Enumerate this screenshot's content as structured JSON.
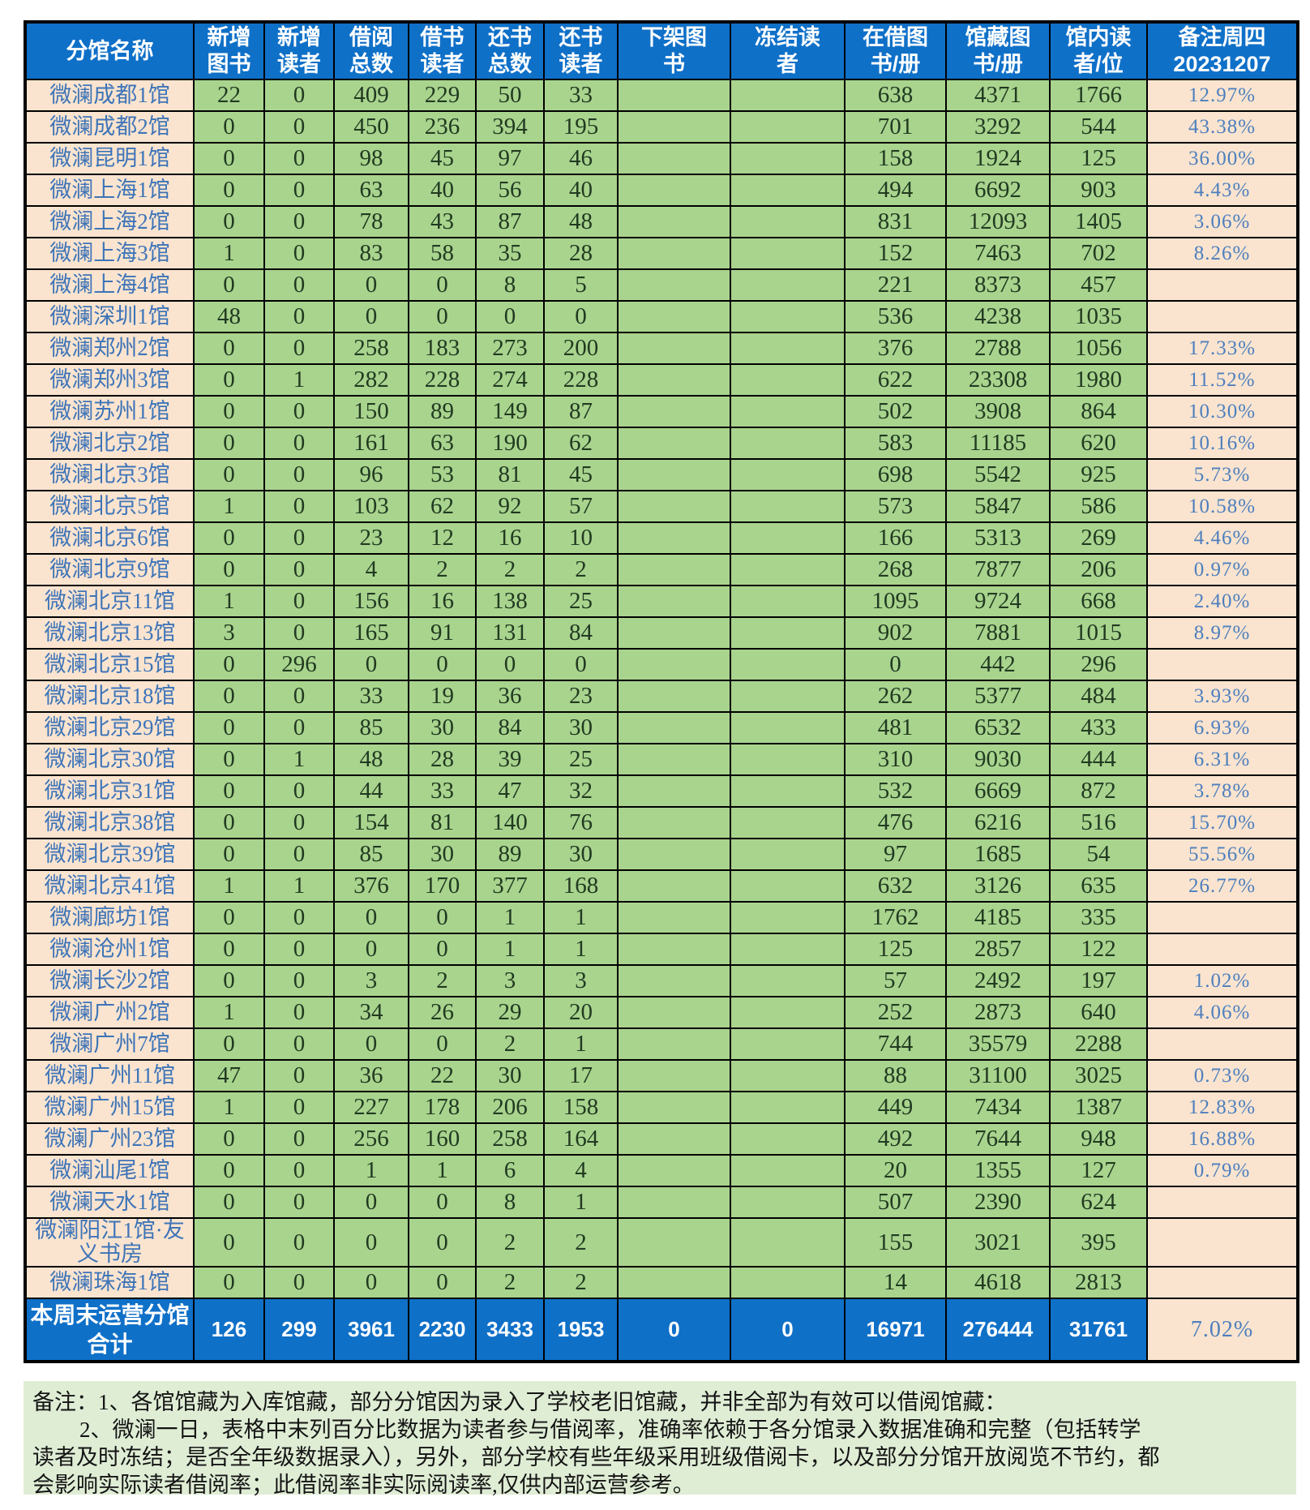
{
  "table": {
    "columns": [
      {
        "id": "branch",
        "lines": [
          "分馆名称"
        ]
      },
      {
        "id": "new-books",
        "lines": [
          "新增",
          "图书"
        ]
      },
      {
        "id": "new-readers",
        "lines": [
          "新增",
          "读者"
        ]
      },
      {
        "id": "borrow-total",
        "lines": [
          "借阅",
          "总数"
        ]
      },
      {
        "id": "borrow-readers",
        "lines": [
          "借书",
          "读者"
        ]
      },
      {
        "id": "return-total",
        "lines": [
          "还书",
          "总数"
        ]
      },
      {
        "id": "return-readers",
        "lines": [
          "还书",
          "读者"
        ]
      },
      {
        "id": "removed-books",
        "lines": [
          "下架图",
          "书"
        ]
      },
      {
        "id": "frozen-readers",
        "lines": [
          "冻结读",
          "者"
        ]
      },
      {
        "id": "on-loan-books",
        "lines": [
          "在借图",
          "书/册"
        ]
      },
      {
        "id": "collection-books",
        "lines": [
          "馆藏图",
          "书/册"
        ]
      },
      {
        "id": "in-library-readers",
        "lines": [
          "馆内读",
          "者/位"
        ]
      },
      {
        "id": "remark-thursday",
        "lines": [
          "备注周四",
          "20231207"
        ]
      }
    ],
    "rows": [
      {
        "name": "微澜成都1馆",
        "values": [
          "22",
          "0",
          "409",
          "229",
          "50",
          "33",
          "",
          "",
          "638",
          "4371",
          "1766"
        ],
        "note": "12.97%"
      },
      {
        "name": "微澜成都2馆",
        "values": [
          "0",
          "0",
          "450",
          "236",
          "394",
          "195",
          "",
          "",
          "701",
          "3292",
          "544"
        ],
        "note": "43.38%"
      },
      {
        "name": "微澜昆明1馆",
        "values": [
          "0",
          "0",
          "98",
          "45",
          "97",
          "46",
          "",
          "",
          "158",
          "1924",
          "125"
        ],
        "note": "36.00%"
      },
      {
        "name": "微澜上海1馆",
        "values": [
          "0",
          "0",
          "63",
          "40",
          "56",
          "40",
          "",
          "",
          "494",
          "6692",
          "903"
        ],
        "note": "4.43%"
      },
      {
        "name": "微澜上海2馆",
        "values": [
          "0",
          "0",
          "78",
          "43",
          "87",
          "48",
          "",
          "",
          "831",
          "12093",
          "1405"
        ],
        "note": "3.06%"
      },
      {
        "name": "微澜上海3馆",
        "values": [
          "1",
          "0",
          "83",
          "58",
          "35",
          "28",
          "",
          "",
          "152",
          "7463",
          "702"
        ],
        "note": "8.26%"
      },
      {
        "name": "微澜上海4馆",
        "values": [
          "0",
          "0",
          "0",
          "0",
          "8",
          "5",
          "",
          "",
          "221",
          "8373",
          "457"
        ],
        "note": ""
      },
      {
        "name": "微澜深圳1馆",
        "values": [
          "48",
          "0",
          "0",
          "0",
          "0",
          "0",
          "",
          "",
          "536",
          "4238",
          "1035"
        ],
        "note": ""
      },
      {
        "name": "微澜郑州2馆",
        "values": [
          "0",
          "0",
          "258",
          "183",
          "273",
          "200",
          "",
          "",
          "376",
          "2788",
          "1056"
        ],
        "note": "17.33%"
      },
      {
        "name": "微澜郑州3馆",
        "values": [
          "0",
          "1",
          "282",
          "228",
          "274",
          "228",
          "",
          "",
          "622",
          "23308",
          "1980"
        ],
        "note": "11.52%"
      },
      {
        "name": "微澜苏州1馆",
        "values": [
          "0",
          "0",
          "150",
          "89",
          "149",
          "87",
          "",
          "",
          "502",
          "3908",
          "864"
        ],
        "note": "10.30%"
      },
      {
        "name": "微澜北京2馆",
        "values": [
          "0",
          "0",
          "161",
          "63",
          "190",
          "62",
          "",
          "",
          "583",
          "11185",
          "620"
        ],
        "note": "10.16%"
      },
      {
        "name": "微澜北京3馆",
        "values": [
          "0",
          "0",
          "96",
          "53",
          "81",
          "45",
          "",
          "",
          "698",
          "5542",
          "925"
        ],
        "note": "5.73%"
      },
      {
        "name": "微澜北京5馆",
        "values": [
          "1",
          "0",
          "103",
          "62",
          "92",
          "57",
          "",
          "",
          "573",
          "5847",
          "586"
        ],
        "note": "10.58%"
      },
      {
        "name": "微澜北京6馆",
        "values": [
          "0",
          "0",
          "23",
          "12",
          "16",
          "10",
          "",
          "",
          "166",
          "5313",
          "269"
        ],
        "note": "4.46%"
      },
      {
        "name": "微澜北京9馆",
        "values": [
          "0",
          "0",
          "4",
          "2",
          "2",
          "2",
          "",
          "",
          "268",
          "7877",
          "206"
        ],
        "note": "0.97%"
      },
      {
        "name": "微澜北京11馆",
        "values": [
          "1",
          "0",
          "156",
          "16",
          "138",
          "25",
          "",
          "",
          "1095",
          "9724",
          "668"
        ],
        "note": "2.40%"
      },
      {
        "name": "微澜北京13馆",
        "values": [
          "3",
          "0",
          "165",
          "91",
          "131",
          "84",
          "",
          "",
          "902",
          "7881",
          "1015"
        ],
        "note": "8.97%"
      },
      {
        "name": "微澜北京15馆",
        "values": [
          "0",
          "296",
          "0",
          "0",
          "0",
          "0",
          "",
          "",
          "0",
          "442",
          "296"
        ],
        "note": ""
      },
      {
        "name": "微澜北京18馆",
        "values": [
          "0",
          "0",
          "33",
          "19",
          "36",
          "23",
          "",
          "",
          "262",
          "5377",
          "484"
        ],
        "note": "3.93%"
      },
      {
        "name": "微澜北京29馆",
        "values": [
          "0",
          "0",
          "85",
          "30",
          "84",
          "30",
          "",
          "",
          "481",
          "6532",
          "433"
        ],
        "note": "6.93%"
      },
      {
        "name": "微澜北京30馆",
        "values": [
          "0",
          "1",
          "48",
          "28",
          "39",
          "25",
          "",
          "",
          "310",
          "9030",
          "444"
        ],
        "note": "6.31%"
      },
      {
        "name": "微澜北京31馆",
        "values": [
          "0",
          "0",
          "44",
          "33",
          "47",
          "32",
          "",
          "",
          "532",
          "6669",
          "872"
        ],
        "note": "3.78%"
      },
      {
        "name": "微澜北京38馆",
        "values": [
          "0",
          "0",
          "154",
          "81",
          "140",
          "76",
          "",
          "",
          "476",
          "6216",
          "516"
        ],
        "note": "15.70%"
      },
      {
        "name": "微澜北京39馆",
        "values": [
          "0",
          "0",
          "85",
          "30",
          "89",
          "30",
          "",
          "",
          "97",
          "1685",
          "54"
        ],
        "note": "55.56%"
      },
      {
        "name": "微澜北京41馆",
        "values": [
          "1",
          "1",
          "376",
          "170",
          "377",
          "168",
          "",
          "",
          "632",
          "3126",
          "635"
        ],
        "note": "26.77%"
      },
      {
        "name": "微澜廊坊1馆",
        "values": [
          "0",
          "0",
          "0",
          "0",
          "1",
          "1",
          "",
          "",
          "1762",
          "4185",
          "335"
        ],
        "note": ""
      },
      {
        "name": "微澜沧州1馆",
        "values": [
          "0",
          "0",
          "0",
          "0",
          "1",
          "1",
          "",
          "",
          "125",
          "2857",
          "122"
        ],
        "note": ""
      },
      {
        "name": "微澜长沙2馆",
        "values": [
          "0",
          "0",
          "3",
          "2",
          "3",
          "3",
          "",
          "",
          "57",
          "2492",
          "197"
        ],
        "note": "1.02%"
      },
      {
        "name": "微澜广州2馆",
        "values": [
          "1",
          "0",
          "34",
          "26",
          "29",
          "20",
          "",
          "",
          "252",
          "2873",
          "640"
        ],
        "note": "4.06%"
      },
      {
        "name": "微澜广州7馆",
        "values": [
          "0",
          "0",
          "0",
          "0",
          "2",
          "1",
          "",
          "",
          "744",
          "35579",
          "2288"
        ],
        "note": ""
      },
      {
        "name": "微澜广州11馆",
        "values": [
          "47",
          "0",
          "36",
          "22",
          "30",
          "17",
          "",
          "",
          "88",
          "31100",
          "3025"
        ],
        "note": "0.73%"
      },
      {
        "name": "微澜广州15馆",
        "values": [
          "1",
          "0",
          "227",
          "178",
          "206",
          "158",
          "",
          "",
          "449",
          "7434",
          "1387"
        ],
        "note": "12.83%"
      },
      {
        "name": "微澜广州23馆",
        "values": [
          "0",
          "0",
          "256",
          "160",
          "258",
          "164",
          "",
          "",
          "492",
          "7644",
          "948"
        ],
        "note": "16.88%"
      },
      {
        "name": "微澜汕尾1馆",
        "values": [
          "0",
          "0",
          "1",
          "1",
          "6",
          "4",
          "",
          "",
          "20",
          "1355",
          "127"
        ],
        "note": "0.79%"
      },
      {
        "name": "微澜天水1馆",
        "values": [
          "0",
          "0",
          "0",
          "0",
          "8",
          "1",
          "",
          "",
          "507",
          "2390",
          "624"
        ],
        "note": ""
      },
      {
        "name": "微澜阳江1馆·友义书房",
        "values": [
          "0",
          "0",
          "0",
          "0",
          "2",
          "2",
          "",
          "",
          "155",
          "3021",
          "395"
        ],
        "note": "",
        "tall": true
      },
      {
        "name": "微澜珠海1馆",
        "values": [
          "0",
          "0",
          "0",
          "0",
          "2",
          "2",
          "",
          "",
          "14",
          "4618",
          "2813"
        ],
        "note": ""
      }
    ],
    "total": {
      "name": "本周末运营分馆合计",
      "values": [
        "126",
        "299",
        "3961",
        "2230",
        "3433",
        "1953",
        "0",
        "0",
        "16971",
        "276444",
        "31761"
      ],
      "note": "7.02%"
    }
  },
  "notes": {
    "lines": [
      "备注：1、各馆馆藏为入库馆藏，部分分馆因为录入了学校老旧馆藏，并非全部为有效可以借阅馆藏：",
      "2、微澜一日，表格中末列百分比数据为读者参与借阅率，准确率依赖于各分馆录入数据准确和完整（包括转学",
      "读者及时冻结；是否全年级数据录入），另外，部分学校有些年级采用班级借阅卡，以及部分分馆开放阅览不节约，都",
      "会影响实际读者借阅率；此借阅率非实际阅读率,仅供内部运营参考。"
    ]
  },
  "colors": {
    "header_bg": "#0f70c8",
    "cell_green": "#a9d48e",
    "cell_peach": "#fae4cf",
    "notes_bg": "#dfedd5",
    "name_text": "#3e74b8",
    "pct_text": "#4d7fbe"
  }
}
